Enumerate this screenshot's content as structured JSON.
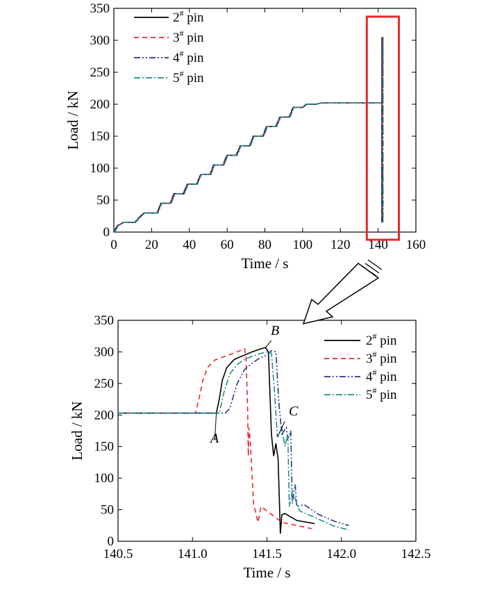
{
  "colors": {
    "2# pin": "#000000",
    "3# pin": "#e8262b",
    "4# pin": "#27348b",
    "5# pin": "#1e8f86",
    "highlight": "#e32b2b"
  },
  "chart_data": [
    {
      "type": "line",
      "xlabel": "Time / s",
      "ylabel": "Load / kN",
      "xlim": [
        0,
        160
      ],
      "ylim": [
        0,
        350
      ],
      "xticks": [
        "0",
        "20",
        "40",
        "60",
        "80",
        "100",
        "120",
        "140",
        "160"
      ],
      "yticks": [
        "0",
        "50",
        "100",
        "150",
        "200",
        "250",
        "300",
        "350"
      ],
      "legend_position": "top-left",
      "series": [
        {
          "name": "2# pin",
          "style": "solid"
        },
        {
          "name": "3# pin",
          "style": "dashed"
        },
        {
          "name": "4# pin",
          "style": "dash-dot-dot"
        },
        {
          "name": "5# pin",
          "style": "dash-dot"
        }
      ],
      "staircase": {
        "step_time": [
          0,
          2,
          5,
          9,
          11,
          16,
          18,
          23,
          25,
          30,
          32,
          37,
          39,
          44,
          46,
          51,
          53,
          58,
          60,
          65,
          67,
          72,
          74,
          79,
          81,
          86,
          88,
          93,
          95,
          100,
          102,
          107,
          110,
          142,
          142.3
        ],
        "load": [
          0,
          10,
          15,
          15,
          15,
          30,
          30,
          30,
          45,
          45,
          60,
          60,
          75,
          75,
          90,
          90,
          105,
          105,
          120,
          120,
          135,
          135,
          150,
          150,
          165,
          165,
          180,
          180,
          195,
          195,
          200,
          200,
          202,
          202,
          202
        ]
      },
      "spike": {
        "x": 142,
        "peak": 305,
        "low": 15
      },
      "highlight_box": {
        "x": [
          134,
          151
        ],
        "y": [
          -12,
          337
        ]
      }
    },
    {
      "type": "line",
      "xlabel": "Time / s",
      "ylabel": "Load / kN",
      "xlim": [
        140.5,
        142.5
      ],
      "ylim": [
        0,
        350
      ],
      "xticks": [
        "140.5",
        "141.0",
        "141.5",
        "142.0",
        "142.5"
      ],
      "yticks": [
        "0",
        "50",
        "100",
        "150",
        "200",
        "250",
        "300",
        "350"
      ],
      "legend_position": "top-right",
      "annotations": [
        {
          "text": "A"
        },
        {
          "text": "B"
        },
        {
          "text": "C"
        }
      ],
      "series": [
        {
          "name": "2# pin",
          "style": "solid",
          "x": [
            140.5,
            141.16,
            141.18,
            141.2,
            141.23,
            141.28,
            141.33,
            141.4,
            141.45,
            141.49,
            141.51,
            141.53,
            141.545,
            141.56,
            141.575,
            141.59,
            141.6,
            141.62,
            141.7,
            141.82
          ],
          "y": [
            203,
            203,
            225,
            255,
            275,
            288,
            293,
            300,
            304,
            307,
            300,
            170,
            135,
            155,
            130,
            12,
            42,
            44,
            33,
            28
          ]
        },
        {
          "name": "3# pin",
          "style": "dashed",
          "x": [
            140.5,
            141.02,
            141.04,
            141.07,
            141.1,
            141.15,
            141.22,
            141.3,
            141.35,
            141.36,
            141.37,
            141.375,
            141.38,
            141.39,
            141.395,
            141.41,
            141.44,
            141.46,
            141.5,
            141.6,
            141.8
          ],
          "y": [
            203,
            203,
            222,
            255,
            275,
            287,
            293,
            300,
            305,
            290,
            210,
            135,
            180,
            150,
            125,
            60,
            30,
            55,
            48,
            30,
            20
          ]
        },
        {
          "name": "4# pin",
          "style": "dash-dot-dot",
          "x": [
            140.5,
            141.22,
            141.25,
            141.3,
            141.35,
            141.4,
            141.45,
            141.5,
            141.53,
            141.56,
            141.58,
            141.6,
            141.63,
            141.64,
            141.66,
            141.67,
            141.69,
            141.7,
            141.75,
            141.85,
            141.95,
            142.05
          ],
          "y": [
            203,
            203,
            210,
            250,
            272,
            282,
            290,
            295,
            302,
            300,
            220,
            170,
            180,
            160,
            175,
            60,
            90,
            55,
            58,
            42,
            32,
            25
          ]
        },
        {
          "name": "5# pin",
          "style": "dash-dot",
          "x": [
            140.5,
            141.18,
            141.21,
            141.25,
            141.3,
            141.35,
            141.4,
            141.45,
            141.5,
            141.53,
            141.55,
            141.57,
            141.6,
            141.62,
            141.64,
            141.65,
            141.67,
            141.7,
            141.72,
            141.8,
            141.95,
            142.05
          ],
          "y": [
            203,
            203,
            235,
            265,
            280,
            288,
            293,
            297,
            300,
            298,
            240,
            165,
            180,
            150,
            170,
            55,
            80,
            60,
            48,
            40,
            24,
            18
          ]
        }
      ]
    }
  ]
}
